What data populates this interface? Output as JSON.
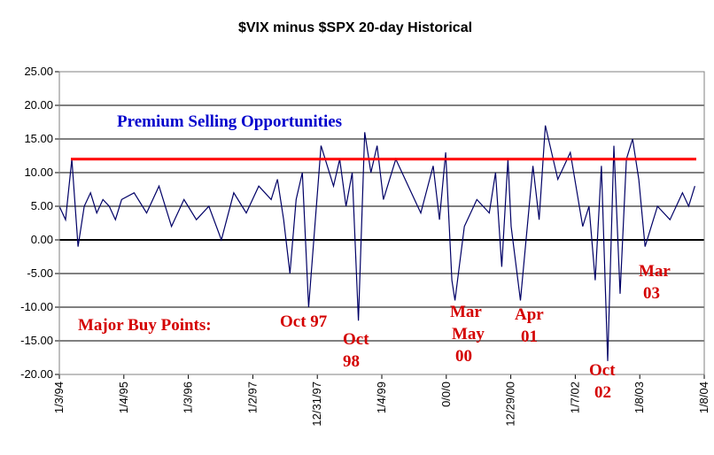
{
  "chart_data": {
    "type": "line",
    "title": "$VIX minus $SPX 20-day Historical",
    "xlabel": "",
    "ylabel": "",
    "ylim": [
      -20,
      25
    ],
    "y_ticks": [
      "25.00",
      "20.00",
      "15.00",
      "10.00",
      "5.00",
      "0.00",
      "-5.00",
      "-10.00",
      "-15.00",
      "-20.00"
    ],
    "x_tick_labels": [
      "1/3/94",
      "1/4/95",
      "1/3/96",
      "1/2/97",
      "12/31/97",
      "1/4/99",
      "0/0/0",
      "12/29/00",
      "1/7/02",
      "1/8/03",
      "1/8/04"
    ],
    "grid": "horizontal",
    "threshold_line": {
      "value": 12,
      "color": "#ff0000"
    },
    "series": [
      {
        "color": "#000066",
        "x": [
          1994.0,
          1994.1,
          1994.2,
          1994.3,
          1994.4,
          1994.5,
          1994.6,
          1994.7,
          1994.8,
          1994.9,
          1995.0,
          1995.2,
          1995.4,
          1995.6,
          1995.8,
          1996.0,
          1996.2,
          1996.4,
          1996.6,
          1996.8,
          1997.0,
          1997.2,
          1997.4,
          1997.5,
          1997.6,
          1997.7,
          1997.8,
          1997.9,
          1998.0,
          1998.2,
          1998.4,
          1998.5,
          1998.6,
          1998.7,
          1998.8,
          1998.9,
          1999.0,
          1999.1,
          1999.2,
          1999.4,
          1999.6,
          1999.8,
          2000.0,
          2000.1,
          2000.2,
          2000.3,
          2000.35,
          2000.5,
          2000.7,
          2000.9,
          2001.0,
          2001.1,
          2001.2,
          2001.25,
          2001.4,
          2001.6,
          2001.7,
          2001.8,
          2002.0,
          2002.2,
          2002.4,
          2002.5,
          2002.6,
          2002.7,
          2002.8,
          2002.9,
          2003.0,
          2003.1,
          2003.2,
          2003.3,
          2003.4,
          2003.6,
          2003.8,
          2004.0,
          2004.1,
          2004.2
        ],
        "values": [
          5,
          3,
          12,
          -1,
          5,
          7,
          4,
          6,
          5,
          3,
          6,
          7,
          4,
          8,
          2,
          6,
          3,
          5,
          0,
          7,
          4,
          8,
          6,
          9,
          3,
          -5,
          6,
          10,
          -10,
          14,
          8,
          12,
          5,
          10,
          -12,
          16,
          10,
          14,
          6,
          12,
          8,
          4,
          11,
          3,
          13,
          -6,
          -9,
          2,
          6,
          4,
          10,
          -4,
          12,
          2,
          -9,
          11,
          3,
          17,
          9,
          13,
          2,
          5,
          -6,
          11,
          -18,
          14,
          -8,
          12,
          15,
          9,
          -1,
          5,
          3,
          7,
          5,
          8
        ]
      }
    ],
    "annotations": [
      {
        "text": "Premium Selling Opportunities",
        "color": "blue"
      },
      {
        "text": "Major Buy Points:",
        "color": "red"
      },
      {
        "text": "Oct 97",
        "color": "red"
      },
      {
        "text": "Oct",
        "color": "red"
      },
      {
        "text": "98",
        "color": "red"
      },
      {
        "text": "Mar",
        "color": "red"
      },
      {
        "text": "May",
        "color": "red"
      },
      {
        "text": "00",
        "color": "red"
      },
      {
        "text": "Apr",
        "color": "red"
      },
      {
        "text": "01",
        "color": "red"
      },
      {
        "text": "Oct",
        "color": "red"
      },
      {
        "text": "02",
        "color": "red"
      },
      {
        "text": "Mar",
        "color": "red"
      },
      {
        "text": "03",
        "color": "red"
      }
    ]
  }
}
